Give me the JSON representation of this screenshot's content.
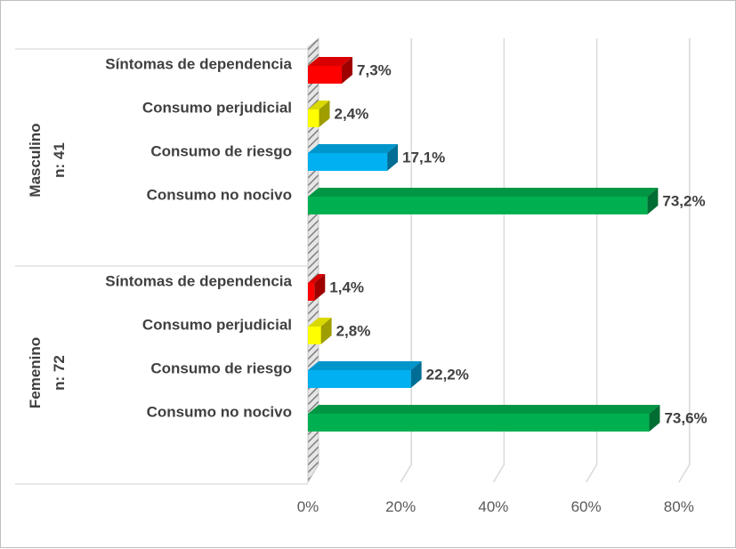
{
  "chart_data": {
    "type": "bar",
    "orientation": "horizontal",
    "style": "3d-clustered",
    "groups": [
      {
        "name": "Masculino",
        "subtitle": "n: 41",
        "categories": [
          "Síntomas de dependencia",
          "Consumo perjudicial",
          "Consumo de riesgo",
          "Consumo no nocivo"
        ],
        "values": [
          7.3,
          2.4,
          17.1,
          73.2
        ],
        "labels": [
          "7,3%",
          "2,4%",
          "17,1%",
          "73,2%"
        ]
      },
      {
        "name": "Femenino",
        "subtitle": "n: 72",
        "categories": [
          "Síntomas de dependencia",
          "Consumo perjudicial",
          "Consumo de riesgo",
          "Consumo no nocivo"
        ],
        "values": [
          1.4,
          2.8,
          22.2,
          73.6
        ],
        "labels": [
          "1,4%",
          "2,8%",
          "22,2%",
          "73,6%"
        ]
      }
    ],
    "category_colors": [
      "#ff0000",
      "#ffff00",
      "#00b0f0",
      "#00b050"
    ],
    "xlim": [
      0,
      80
    ],
    "xticks": [
      "0%",
      "20%",
      "40%",
      "60%",
      "80%"
    ],
    "grid": true,
    "title": "",
    "xlabel": "",
    "ylabel": ""
  }
}
